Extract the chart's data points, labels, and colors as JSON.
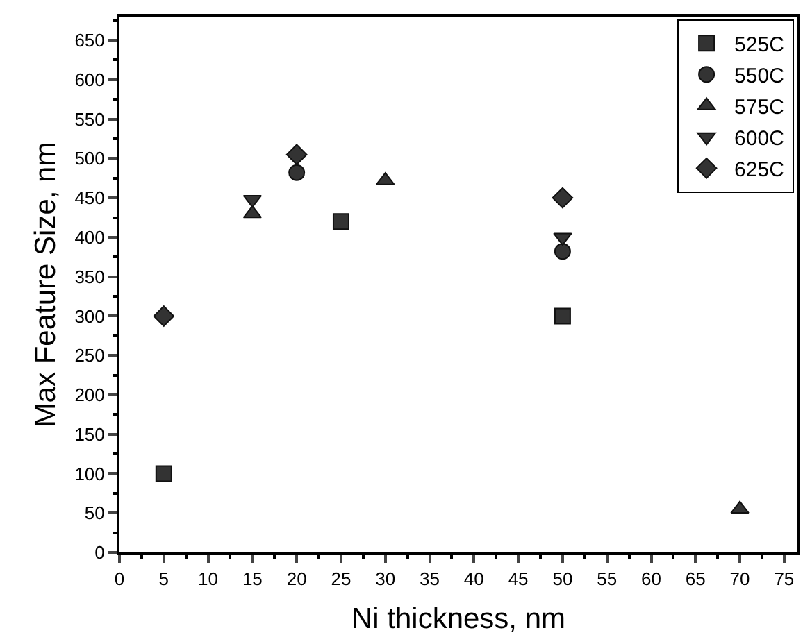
{
  "chart_data": {
    "type": "scatter",
    "xlabel": "Ni thickness, nm",
    "ylabel": "Max Feature Size, nm",
    "xlim": [
      0,
      76.5
    ],
    "xticks": [
      0,
      5,
      10,
      15,
      20,
      25,
      30,
      35,
      40,
      45,
      50,
      55,
      60,
      65,
      70,
      75
    ],
    "ylim": [
      0,
      680
    ],
    "yticks": [
      0,
      50,
      100,
      150,
      200,
      250,
      300,
      350,
      400,
      450,
      500,
      550,
      600,
      650
    ],
    "grid": false,
    "legend": "top right",
    "series": [
      {
        "name": "525C",
        "color": "#333333",
        "marker": "square",
        "x": [
          5,
          25,
          50
        ],
        "values": [
          100,
          420,
          300
        ]
      },
      {
        "name": "550C",
        "color": "#333333",
        "marker": "circle",
        "x": [
          20,
          50
        ],
        "values": [
          482,
          382
        ]
      },
      {
        "name": "575C",
        "color": "#333333",
        "marker": "triangle",
        "x": [
          15,
          30,
          70
        ],
        "values": [
          430,
          472,
          55
        ]
      },
      {
        "name": "600C",
        "color": "#333333",
        "marker": "triangle-down",
        "x": [
          15,
          50
        ],
        "values": [
          448,
          400
        ]
      },
      {
        "name": "625C",
        "color": "#333333",
        "marker": "diamond",
        "x": [
          5,
          20,
          50
        ],
        "values": [
          300,
          505,
          450
        ]
      }
    ]
  }
}
